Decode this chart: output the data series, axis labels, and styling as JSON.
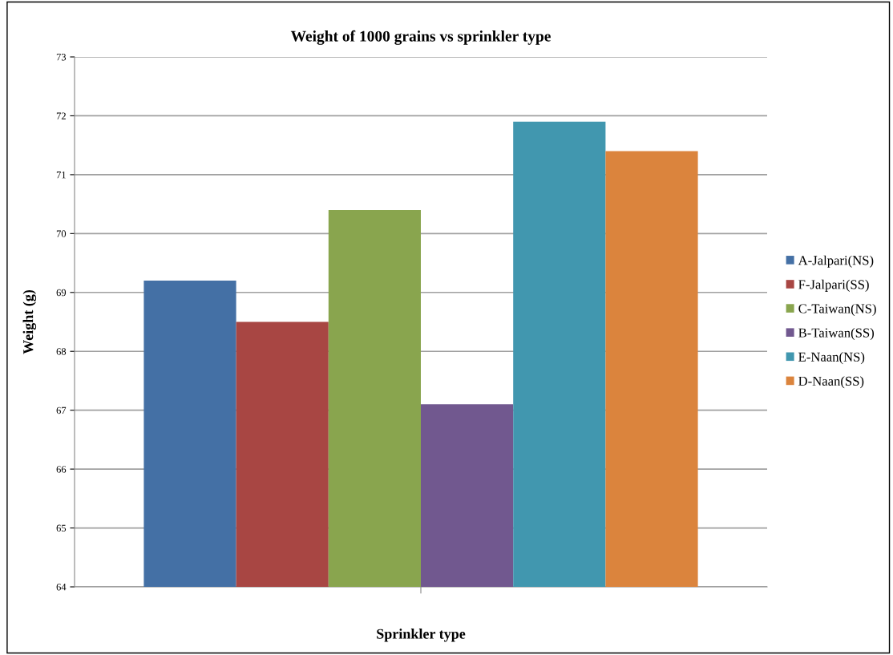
{
  "chart_data": {
    "type": "bar",
    "title": "Weight of 1000 grains vs sprinkler type",
    "xlabel": "Sprinkler type",
    "ylabel": "Weight (g)",
    "categories": [
      null
    ],
    "series": [
      {
        "name": "A-Jalpari(NS)",
        "color": "#4470a5",
        "values": [
          69.2
        ]
      },
      {
        "name": "F-Jalpari(SS)",
        "color": "#a84643",
        "values": [
          68.5
        ]
      },
      {
        "name": "C-Taiwan(NS)",
        "color": "#89a54e",
        "values": [
          70.4
        ]
      },
      {
        "name": "B-Taiwan(SS)",
        "color": "#71588f",
        "values": [
          67.1
        ]
      },
      {
        "name": "E-Naan(NS)",
        "color": "#4197af",
        "values": [
          71.9
        ]
      },
      {
        "name": "D-Naan(SS)",
        "color": "#db843d",
        "values": [
          71.4
        ]
      }
    ],
    "ylim": [
      64,
      73
    ],
    "yticks": [
      64,
      65,
      66,
      67,
      68,
      69,
      70,
      71,
      72,
      73
    ],
    "grid": "y",
    "legend": "right"
  }
}
